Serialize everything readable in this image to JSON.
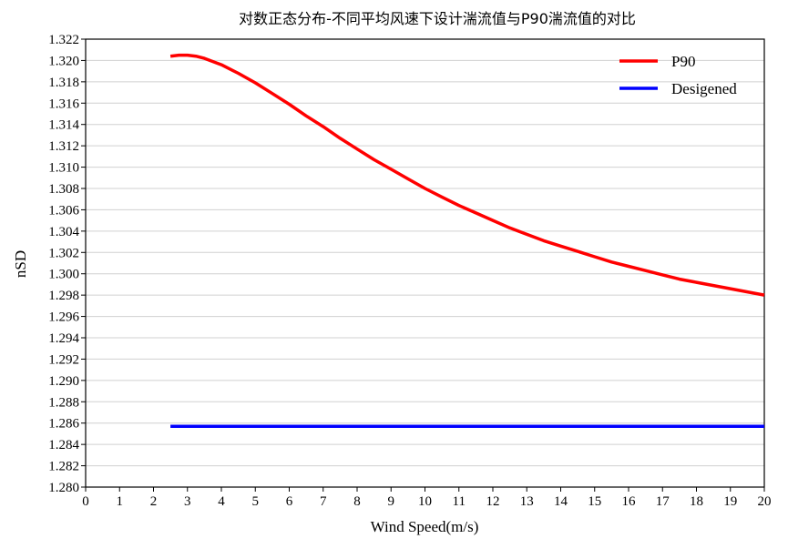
{
  "chart_data": {
    "type": "line",
    "title": "对数正态分布-不同平均风速下设计湍流值与P90湍流值的对比",
    "xlabel": "Wind Speed(m/s)",
    "ylabel": "nSD",
    "xlim": [
      0,
      20
    ],
    "ylim": [
      1.28,
      1.322
    ],
    "xticks": [
      "0",
      "1",
      "2",
      "3",
      "4",
      "5",
      "6",
      "7",
      "8",
      "9",
      "10",
      "11",
      "12",
      "13",
      "14",
      "15",
      "16",
      "17",
      "18",
      "19",
      "20"
    ],
    "yticks": [
      "1.280",
      "1.282",
      "1.284",
      "1.286",
      "1.288",
      "1.290",
      "1.292",
      "1.294",
      "1.296",
      "1.298",
      "1.300",
      "1.302",
      "1.304",
      "1.306",
      "1.308",
      "1.310",
      "1.312",
      "1.314",
      "1.316",
      "1.318",
      "1.320",
      "1.322"
    ],
    "grid": "horizontal",
    "legend_position": "top-right",
    "series": [
      {
        "name": "P90",
        "color": "#ff0000",
        "x": [
          2.5,
          2.75,
          3,
          3.25,
          3.5,
          4,
          4.5,
          5,
          5.5,
          6,
          6.5,
          7,
          7.5,
          8,
          8.5,
          9,
          9.5,
          10,
          10.5,
          11,
          11.5,
          12,
          12.5,
          13,
          13.5,
          14,
          14.5,
          15,
          15.5,
          16,
          16.5,
          17,
          17.5,
          18,
          18.5,
          19,
          19.5,
          20
        ],
        "y": [
          1.3204,
          1.3205,
          1.3205,
          1.3204,
          1.3202,
          1.3196,
          1.3188,
          1.3179,
          1.3169,
          1.3159,
          1.3148,
          1.3138,
          1.3127,
          1.3117,
          1.3107,
          1.3098,
          1.3089,
          1.308,
          1.3072,
          1.3064,
          1.3057,
          1.305,
          1.3043,
          1.3037,
          1.3031,
          1.3026,
          1.3021,
          1.3016,
          1.3011,
          1.3007,
          1.3003,
          1.2999,
          1.2995,
          1.2992,
          1.2989,
          1.2986,
          1.2983,
          1.298
        ]
      },
      {
        "name": "Desigened",
        "color": "#0000ff",
        "x": [
          2.5,
          20
        ],
        "y": [
          1.2857,
          1.2857
        ]
      }
    ]
  }
}
